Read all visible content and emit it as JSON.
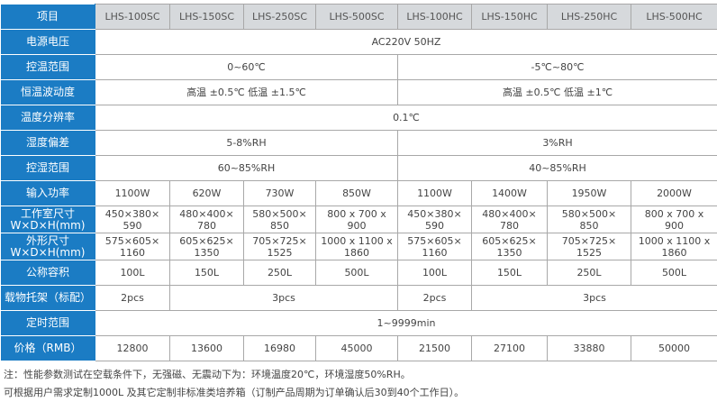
{
  "header": {
    "label": "项目",
    "models": [
      "LHS-100SC",
      "LHS-150SC",
      "LHS-250SC",
      "LHS-500SC",
      "LHS-100HC",
      "LHS-150HC",
      "LHS-250HC",
      "LHS-500HC"
    ]
  },
  "rows": {
    "voltage": {
      "label": "电源电压",
      "value": "AC220V  50HZ"
    },
    "temp_range": {
      "label": "控温范围",
      "sc": "0~60℃",
      "hc": "-5℃~80℃"
    },
    "fluctuation": {
      "label": "恒温波动度",
      "sc": "高温 ±0.5℃ 低温 ±1.5℃",
      "hc": "高温 ±0.5℃ 低温 ±1℃"
    },
    "resolution": {
      "label": "温度分辨率",
      "value": "0.1℃"
    },
    "humidity_dev": {
      "label": "湿度偏差",
      "sc": "5-8%RH",
      "hc": "3%RH"
    },
    "humidity_range": {
      "label": "控湿范围",
      "sc": "60~85%RH",
      "hc": "40~85%RH"
    },
    "power": {
      "label": "输入功率",
      "values": [
        "1100W",
        "620W",
        "730W",
        "850W",
        "1100W",
        "1400W",
        "1950W",
        "2000W"
      ]
    },
    "chamber": {
      "label1": "工作室尺寸",
      "label2": "W×D×H(mm)",
      "values": [
        [
          "450×380×",
          "590"
        ],
        [
          "480×400×",
          "780"
        ],
        [
          "580×500×",
          "850"
        ],
        [
          "800 x 700 x",
          "900"
        ],
        [
          "450×380×",
          "590"
        ],
        [
          "480×400×",
          "780"
        ],
        [
          "580×500×",
          "850"
        ],
        [
          "800 x 700 x",
          "900"
        ]
      ]
    },
    "outer": {
      "label1": "外形尺寸",
      "label2": "W×D×H(mm)",
      "values": [
        [
          "575×605×",
          "1160"
        ],
        [
          "605×625×",
          "1350"
        ],
        [
          "705×725×",
          "1525"
        ],
        [
          "1000 x 1100 x",
          "1860"
        ],
        [
          "575×605×",
          "1160"
        ],
        [
          "605×625×",
          "1350"
        ],
        [
          "705×725×",
          "1525"
        ],
        [
          "1000 x 1100 x",
          "1860"
        ]
      ]
    },
    "volume": {
      "label": "公称容积",
      "values": [
        "100L",
        "150L",
        "250L",
        "500L",
        "100L",
        "150L",
        "250L",
        "500L"
      ]
    },
    "shelves": {
      "label": "载物托架（标配）",
      "values": [
        "2pcs",
        "3pcs",
        "2pcs",
        "3pcs"
      ]
    },
    "timer": {
      "label": "定时范围",
      "value": "1~9999min"
    },
    "price": {
      "label": "价格（RMB）",
      "values": [
        "12800",
        "13600",
        "16980",
        "45000",
        "21500",
        "27100",
        "33880",
        "50000"
      ]
    }
  },
  "notes": [
    "注：性能参数测试在空载条件下，无强磁、无震动下为：环境温度20℃，环境湿度50%RH。",
    "可根据用户需求定制1000L 及其它定制非标准类培养箱（订制产品周期为订单确认后30到40个工作日）。"
  ],
  "colors": {
    "label_bg": "#1b7cc4",
    "header_bg": "#d6d9dc"
  }
}
